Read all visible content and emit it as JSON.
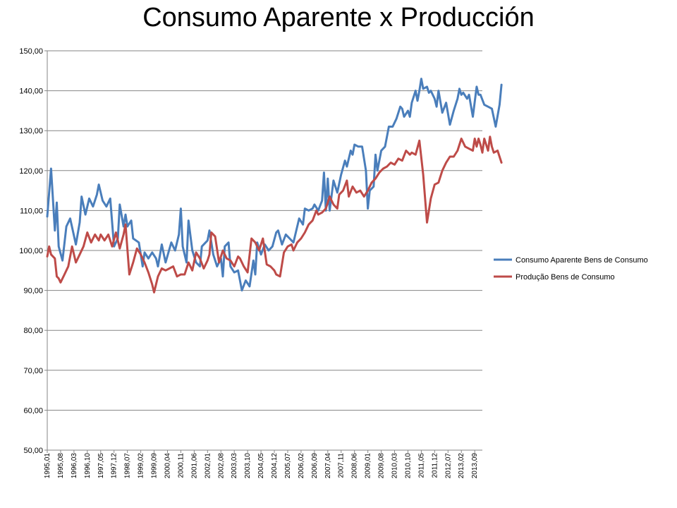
{
  "chart_data": {
    "type": "line",
    "title": "Consumo Aparente x Producción",
    "ylim": [
      50,
      150
    ],
    "yticks": [
      "50,00",
      "60,00",
      "70,00",
      "80,00",
      "90,00",
      "100,00",
      "110,00",
      "120,00",
      "130,00",
      "140,00",
      "150,00"
    ],
    "x_start": "1995-01",
    "x_end": "2014-01",
    "xticks": [
      "1995,01",
      "1995,08",
      "1996,03",
      "1996,10",
      "1997,05",
      "1997,12",
      "1998,07",
      "1999,02",
      "1999,09",
      "2000,04",
      "2000,11",
      "2001,06",
      "2002,01",
      "2002,08",
      "2003,03",
      "2003,10",
      "2004,05",
      "2004,12",
      "2005,07",
      "2006,02",
      "2006,09",
      "2007,04",
      "2007,11",
      "2008,06",
      "2009,01",
      "2009,08",
      "2010,03",
      "2010,10",
      "2011,05",
      "2011,12",
      "2012,07",
      "2013,02",
      "2013,09"
    ],
    "grid": true,
    "legend_position": "right",
    "series": [
      {
        "name": "Consumo Aparente Bens de Consumo",
        "color": "#4a7ebb",
        "points": [
          [
            "1995-01",
            108.5
          ],
          [
            "1995-03",
            120.5
          ],
          [
            "1995-05",
            105
          ],
          [
            "1995-06",
            112
          ],
          [
            "1995-07",
            101
          ],
          [
            "1995-09",
            97.5
          ],
          [
            "1995-11",
            106
          ],
          [
            "1996-01",
            108
          ],
          [
            "1996-04",
            101.5
          ],
          [
            "1996-06",
            107
          ],
          [
            "1996-07",
            113.5
          ],
          [
            "1996-09",
            109
          ],
          [
            "1996-11",
            113
          ],
          [
            "1997-01",
            111
          ],
          [
            "1997-03",
            114
          ],
          [
            "1997-04",
            116.5
          ],
          [
            "1997-06",
            112.5
          ],
          [
            "1997-08",
            111
          ],
          [
            "1997-10",
            113
          ],
          [
            "1997-12",
            101
          ],
          [
            "1998-02",
            103
          ],
          [
            "1998-03",
            111.5
          ],
          [
            "1998-05",
            106
          ],
          [
            "1998-06",
            109
          ],
          [
            "1998-07",
            106
          ],
          [
            "1998-09",
            107.5
          ],
          [
            "1998-10",
            103
          ],
          [
            "1999-01",
            102
          ],
          [
            "1999-03",
            96
          ],
          [
            "1999-04",
            99.5
          ],
          [
            "1999-06",
            98
          ],
          [
            "1999-08",
            99.5
          ],
          [
            "1999-10",
            98
          ],
          [
            "1999-11",
            96
          ],
          [
            "2000-01",
            101.5
          ],
          [
            "2000-03",
            97
          ],
          [
            "2000-06",
            102
          ],
          [
            "2000-08",
            100
          ],
          [
            "2000-10",
            104
          ],
          [
            "2000-11",
            110.5
          ],
          [
            "2000-12",
            101
          ],
          [
            "2001-02",
            97
          ],
          [
            "2001-03",
            107.5
          ],
          [
            "2001-05",
            100
          ],
          [
            "2001-07",
            97
          ],
          [
            "2001-09",
            96
          ],
          [
            "2001-10",
            101
          ],
          [
            "2002-01",
            102.5
          ],
          [
            "2002-02",
            105
          ],
          [
            "2002-04",
            99
          ],
          [
            "2002-06",
            96
          ],
          [
            "2002-08",
            98
          ],
          [
            "2002-09",
            93.5
          ],
          [
            "2002-10",
            101
          ],
          [
            "2002-12",
            102
          ],
          [
            "2003-01",
            96
          ],
          [
            "2003-03",
            94.5
          ],
          [
            "2003-05",
            95
          ],
          [
            "2003-07",
            90
          ],
          [
            "2003-09",
            92.5
          ],
          [
            "2003-11",
            91
          ],
          [
            "2004-01",
            97.5
          ],
          [
            "2004-02",
            94
          ],
          [
            "2004-03",
            102
          ],
          [
            "2004-05",
            99
          ],
          [
            "2004-07",
            101.5
          ],
          [
            "2004-09",
            100
          ],
          [
            "2004-11",
            101
          ],
          [
            "2005-01",
            104.5
          ],
          [
            "2005-02",
            105
          ],
          [
            "2005-04",
            101.5
          ],
          [
            "2005-06",
            104
          ],
          [
            "2005-08",
            103
          ],
          [
            "2005-10",
            102
          ],
          [
            "2006-01",
            108
          ],
          [
            "2006-03",
            106.5
          ],
          [
            "2006-04",
            110.5
          ],
          [
            "2006-06",
            110
          ],
          [
            "2006-08",
            110.5
          ],
          [
            "2006-09",
            111.5
          ],
          [
            "2006-11",
            110
          ],
          [
            "2007-01",
            112.5
          ],
          [
            "2007-02",
            119.5
          ],
          [
            "2007-03",
            110
          ],
          [
            "2007-04",
            118
          ],
          [
            "2007-05",
            110
          ],
          [
            "2007-07",
            117.5
          ],
          [
            "2007-09",
            114.5
          ],
          [
            "2007-11",
            119
          ],
          [
            "2008-01",
            122.5
          ],
          [
            "2008-02",
            121
          ],
          [
            "2008-04",
            125
          ],
          [
            "2008-05",
            124
          ],
          [
            "2008-06",
            126.5
          ],
          [
            "2008-08",
            126
          ],
          [
            "2008-10",
            126
          ],
          [
            "2008-12",
            120
          ],
          [
            "2009-01",
            110.5
          ],
          [
            "2009-02",
            115
          ],
          [
            "2009-04",
            116
          ],
          [
            "2009-05",
            124
          ],
          [
            "2009-06",
            120
          ],
          [
            "2009-08",
            125
          ],
          [
            "2009-10",
            126
          ],
          [
            "2009-12",
            131
          ],
          [
            "2010-02",
            131
          ],
          [
            "2010-04",
            133
          ],
          [
            "2010-06",
            136
          ],
          [
            "2010-07",
            135.5
          ],
          [
            "2010-08",
            133.5
          ],
          [
            "2010-10",
            135
          ],
          [
            "2010-11",
            133.5
          ],
          [
            "2010-12",
            137
          ],
          [
            "2011-02",
            140
          ],
          [
            "2011-03",
            137.5
          ],
          [
            "2011-04",
            140
          ],
          [
            "2011-05",
            143
          ],
          [
            "2011-06",
            140.5
          ],
          [
            "2011-08",
            141
          ],
          [
            "2011-09",
            139.5
          ],
          [
            "2011-10",
            140
          ],
          [
            "2011-12",
            138
          ],
          [
            "2012-01",
            136
          ],
          [
            "2012-02",
            140
          ],
          [
            "2012-04",
            134.5
          ],
          [
            "2012-06",
            137
          ],
          [
            "2012-08",
            131.5
          ],
          [
            "2012-10",
            135
          ],
          [
            "2012-12",
            138
          ],
          [
            "2013-01",
            140.5
          ],
          [
            "2013-02",
            139
          ],
          [
            "2013-03",
            139.5
          ],
          [
            "2013-05",
            138
          ],
          [
            "2013-06",
            139
          ],
          [
            "2013-08",
            133.5
          ],
          [
            "2013-10",
            141
          ],
          [
            "2013-11",
            139
          ],
          [
            "2013-12",
            139
          ],
          [
            "2014-02",
            136.5
          ],
          [
            "2014-04",
            136
          ],
          [
            "2014-06",
            135.5
          ],
          [
            "2014-08",
            131
          ],
          [
            "2014-10",
            136.5
          ],
          [
            "2014-11",
            141.5
          ]
        ]
      },
      {
        "name": "Produção Bens de Consumo",
        "color": "#be4b48",
        "points": [
          [
            "1995-01",
            98.5
          ],
          [
            "1995-02",
            101
          ],
          [
            "1995-03",
            99
          ],
          [
            "1995-05",
            98
          ],
          [
            "1995-06",
            93.5
          ],
          [
            "1995-07",
            93
          ],
          [
            "1995-08",
            92
          ],
          [
            "1995-10",
            94
          ],
          [
            "1995-12",
            96
          ],
          [
            "1996-02",
            101
          ],
          [
            "1996-04",
            97
          ],
          [
            "1996-06",
            99
          ],
          [
            "1996-08",
            101
          ],
          [
            "1996-10",
            104.5
          ],
          [
            "1996-12",
            102
          ],
          [
            "1997-02",
            104
          ],
          [
            "1997-04",
            102.5
          ],
          [
            "1997-05",
            104
          ],
          [
            "1997-07",
            102.5
          ],
          [
            "1997-09",
            104
          ],
          [
            "1997-11",
            101
          ],
          [
            "1998-01",
            104.5
          ],
          [
            "1998-03",
            100.5
          ],
          [
            "1998-05",
            104
          ],
          [
            "1998-06",
            106.5
          ],
          [
            "1998-08",
            94
          ],
          [
            "1998-10",
            97
          ],
          [
            "1998-12",
            100.5
          ],
          [
            "1999-02",
            99
          ],
          [
            "1999-04",
            97
          ],
          [
            "1999-06",
            94.5
          ],
          [
            "1999-08",
            91.5
          ],
          [
            "1999-09",
            89.5
          ],
          [
            "1999-11",
            93.5
          ],
          [
            "2000-01",
            95.5
          ],
          [
            "2000-03",
            95
          ],
          [
            "2000-05",
            95.5
          ],
          [
            "2000-07",
            96
          ],
          [
            "2000-09",
            93.5
          ],
          [
            "2000-11",
            94
          ],
          [
            "2001-01",
            94
          ],
          [
            "2001-03",
            97
          ],
          [
            "2001-05",
            95
          ],
          [
            "2001-07",
            99.5
          ],
          [
            "2001-09",
            98
          ],
          [
            "2001-11",
            95.5
          ],
          [
            "2002-01",
            97.5
          ],
          [
            "2002-02",
            99
          ],
          [
            "2002-03",
            104.5
          ],
          [
            "2002-05",
            103.5
          ],
          [
            "2002-07",
            97
          ],
          [
            "2002-09",
            100
          ],
          [
            "2002-11",
            98
          ],
          [
            "2003-01",
            97.5
          ],
          [
            "2003-03",
            96
          ],
          [
            "2003-05",
            98.5
          ],
          [
            "2003-06",
            98
          ],
          [
            "2003-08",
            96
          ],
          [
            "2003-10",
            94.5
          ],
          [
            "2003-12",
            103
          ],
          [
            "2004-02",
            102
          ],
          [
            "2004-04",
            100
          ],
          [
            "2004-06",
            103
          ],
          [
            "2004-08",
            96.5
          ],
          [
            "2004-10",
            96
          ],
          [
            "2004-12",
            95
          ],
          [
            "2005-01",
            94
          ],
          [
            "2005-03",
            93.5
          ],
          [
            "2005-05",
            99.5
          ],
          [
            "2005-07",
            101
          ],
          [
            "2005-09",
            101.5
          ],
          [
            "2005-10",
            100
          ],
          [
            "2005-12",
            102
          ],
          [
            "2006-02",
            103
          ],
          [
            "2006-04",
            104.5
          ],
          [
            "2006-06",
            106.5
          ],
          [
            "2006-08",
            107.5
          ],
          [
            "2006-10",
            110
          ],
          [
            "2006-11",
            109
          ],
          [
            "2007-01",
            109.5
          ],
          [
            "2007-03",
            110.5
          ],
          [
            "2007-05",
            113.5
          ],
          [
            "2007-07",
            111.5
          ],
          [
            "2007-09",
            110.5
          ],
          [
            "2007-10",
            114
          ],
          [
            "2007-12",
            115
          ],
          [
            "2008-02",
            117.5
          ],
          [
            "2008-03",
            113.5
          ],
          [
            "2008-05",
            116
          ],
          [
            "2008-07",
            114.5
          ],
          [
            "2008-09",
            115
          ],
          [
            "2008-11",
            113.5
          ],
          [
            "2009-01",
            115
          ],
          [
            "2009-03",
            117
          ],
          [
            "2009-05",
            118
          ],
          [
            "2009-07",
            119.5
          ],
          [
            "2009-09",
            120.5
          ],
          [
            "2009-11",
            121
          ],
          [
            "2010-01",
            122
          ],
          [
            "2010-03",
            121.5
          ],
          [
            "2010-05",
            123
          ],
          [
            "2010-07",
            122.5
          ],
          [
            "2010-09",
            125
          ],
          [
            "2010-11",
            124
          ],
          [
            "2010-12",
            124.5
          ],
          [
            "2011-02",
            124
          ],
          [
            "2011-04",
            127.5
          ],
          [
            "2011-06",
            119
          ],
          [
            "2011-08",
            107
          ],
          [
            "2011-10",
            113
          ],
          [
            "2011-12",
            116.5
          ],
          [
            "2012-02",
            117
          ],
          [
            "2012-04",
            120
          ],
          [
            "2012-06",
            122
          ],
          [
            "2012-08",
            123.5
          ],
          [
            "2012-10",
            123.5
          ],
          [
            "2012-12",
            125
          ],
          [
            "2013-02",
            128
          ],
          [
            "2013-04",
            126
          ],
          [
            "2013-06",
            125.5
          ],
          [
            "2013-08",
            125
          ],
          [
            "2013-09",
            128
          ],
          [
            "2013-10",
            126
          ],
          [
            "2013-11",
            128
          ],
          [
            "2013-12",
            126.5
          ],
          [
            "2014-01",
            124.5
          ],
          [
            "2014-02",
            128
          ],
          [
            "2014-04",
            125
          ],
          [
            "2014-05",
            128.5
          ],
          [
            "2014-06",
            126
          ],
          [
            "2014-07",
            124.5
          ],
          [
            "2014-09",
            125
          ],
          [
            "2014-11",
            122
          ]
        ]
      }
    ]
  }
}
